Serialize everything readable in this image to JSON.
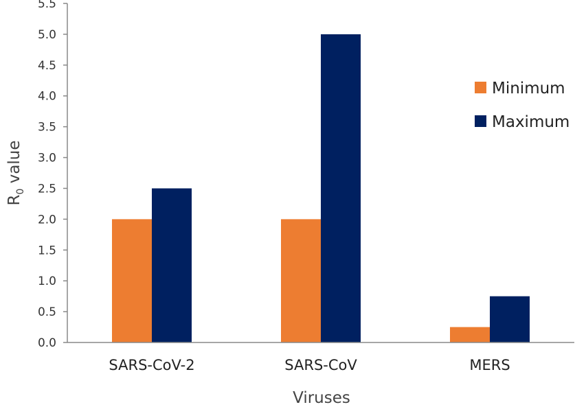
{
  "chart_data": {
    "type": "bar",
    "categories": [
      "SARS-CoV-2",
      "SARS-CoV",
      "MERS"
    ],
    "series": [
      {
        "name": "Minimum",
        "values": [
          2.0,
          2.0,
          0.25
        ],
        "color": "#ED7D31"
      },
      {
        "name": "Maximum",
        "values": [
          2.5,
          5.0,
          0.75
        ],
        "color": "#002060"
      }
    ],
    "xlabel": "Viruses",
    "ylabel_main": "R",
    "ylabel_sub": "0",
    "ylabel_rest": " value",
    "ylim": [
      0,
      5.5
    ],
    "yticks": [
      "0.0",
      "0.5",
      "1.0",
      "1.5",
      "2.0",
      "2.5",
      "3.0",
      "3.5",
      "4.0",
      "4.5",
      "5.0",
      "5.5"
    ],
    "grid": false,
    "legend_position": "right"
  }
}
